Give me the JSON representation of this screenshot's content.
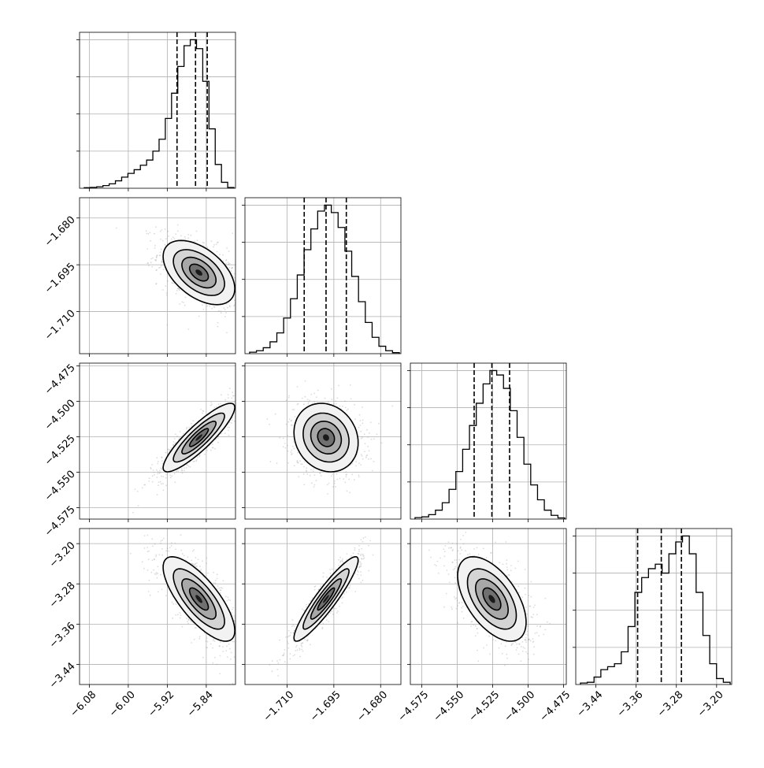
{
  "chart_data": {
    "type": "corner",
    "colors": {
      "line": "#000000",
      "grid": "#b0b0b0",
      "points": "#9a9a9a"
    },
    "grid": true,
    "parameters": [
      {
        "range": [
          -6.1,
          -5.78
        ],
        "ticks": [
          "-6.08",
          "-6.00",
          "-5.92",
          "-5.84"
        ],
        "tick_values": [
          -6.08,
          -6.0,
          -5.92,
          -5.84
        ],
        "quantiles": [
          -5.9,
          -5.862,
          -5.838
        ],
        "hist": [
          0.004,
          0.006,
          0.01,
          0.018,
          0.03,
          0.05,
          0.075,
          0.1,
          0.125,
          0.155,
          0.19,
          0.25,
          0.33,
          0.47,
          0.64,
          0.82,
          0.96,
          1.0,
          0.94,
          0.72,
          0.4,
          0.16,
          0.04,
          0.005
        ],
        "center": -5.855,
        "sd": 0.035
      },
      {
        "range": [
          -1.7235,
          -1.6735
        ],
        "ticks": [
          "-1.710",
          "-1.695",
          "-1.680"
        ],
        "tick_values": [
          -1.71,
          -1.695,
          -1.68
        ],
        "quantiles": [
          -1.7045,
          -1.6975,
          -1.691
        ],
        "hist": [
          0.01,
          0.02,
          0.04,
          0.08,
          0.14,
          0.24,
          0.37,
          0.53,
          0.7,
          0.84,
          0.96,
          1.0,
          0.95,
          0.85,
          0.69,
          0.52,
          0.35,
          0.21,
          0.11,
          0.05,
          0.02,
          0.007
        ],
        "center": -1.6975,
        "sd": 0.0049
      },
      {
        "range": [
          -4.583,
          -4.473
        ],
        "ticks": [
          "-4.575",
          "-4.550",
          "-4.525",
          "-4.500",
          "-4.475"
        ],
        "tick_values": [
          -4.575,
          -4.55,
          -4.525,
          -4.5,
          -4.475
        ],
        "quantiles": [
          -4.538,
          -4.5255,
          -4.513
        ],
        "hist": [
          0.01,
          0.015,
          0.03,
          0.06,
          0.11,
          0.2,
          0.32,
          0.47,
          0.63,
          0.78,
          0.91,
          1.0,
          0.97,
          0.88,
          0.73,
          0.55,
          0.37,
          0.23,
          0.13,
          0.06,
          0.025,
          0.008
        ],
        "center": -4.5255,
        "sd": 0.0115
      },
      {
        "range": [
          -3.48,
          -3.17
        ],
        "ticks": [
          "-3.44",
          "-3.36",
          "-3.28",
          "-3.20"
        ],
        "tick_values": [
          -3.44,
          -3.36,
          -3.28,
          -3.2
        ],
        "quantiles": [
          -3.357,
          -3.31,
          -3.27
        ],
        "hist": [
          0.01,
          0.015,
          0.05,
          0.1,
          0.12,
          0.14,
          0.22,
          0.39,
          0.62,
          0.72,
          0.78,
          0.81,
          0.75,
          0.88,
          0.96,
          1.0,
          0.88,
          0.62,
          0.33,
          0.14,
          0.04,
          0.015
        ],
        "center": -3.31,
        "sd": 0.04
      }
    ],
    "correlations": {
      "1-0": -0.5,
      "2-0": 0.88,
      "2-1": -0.15,
      "3-0": -0.75,
      "3-1": 0.92,
      "3-2": -0.55
    }
  }
}
